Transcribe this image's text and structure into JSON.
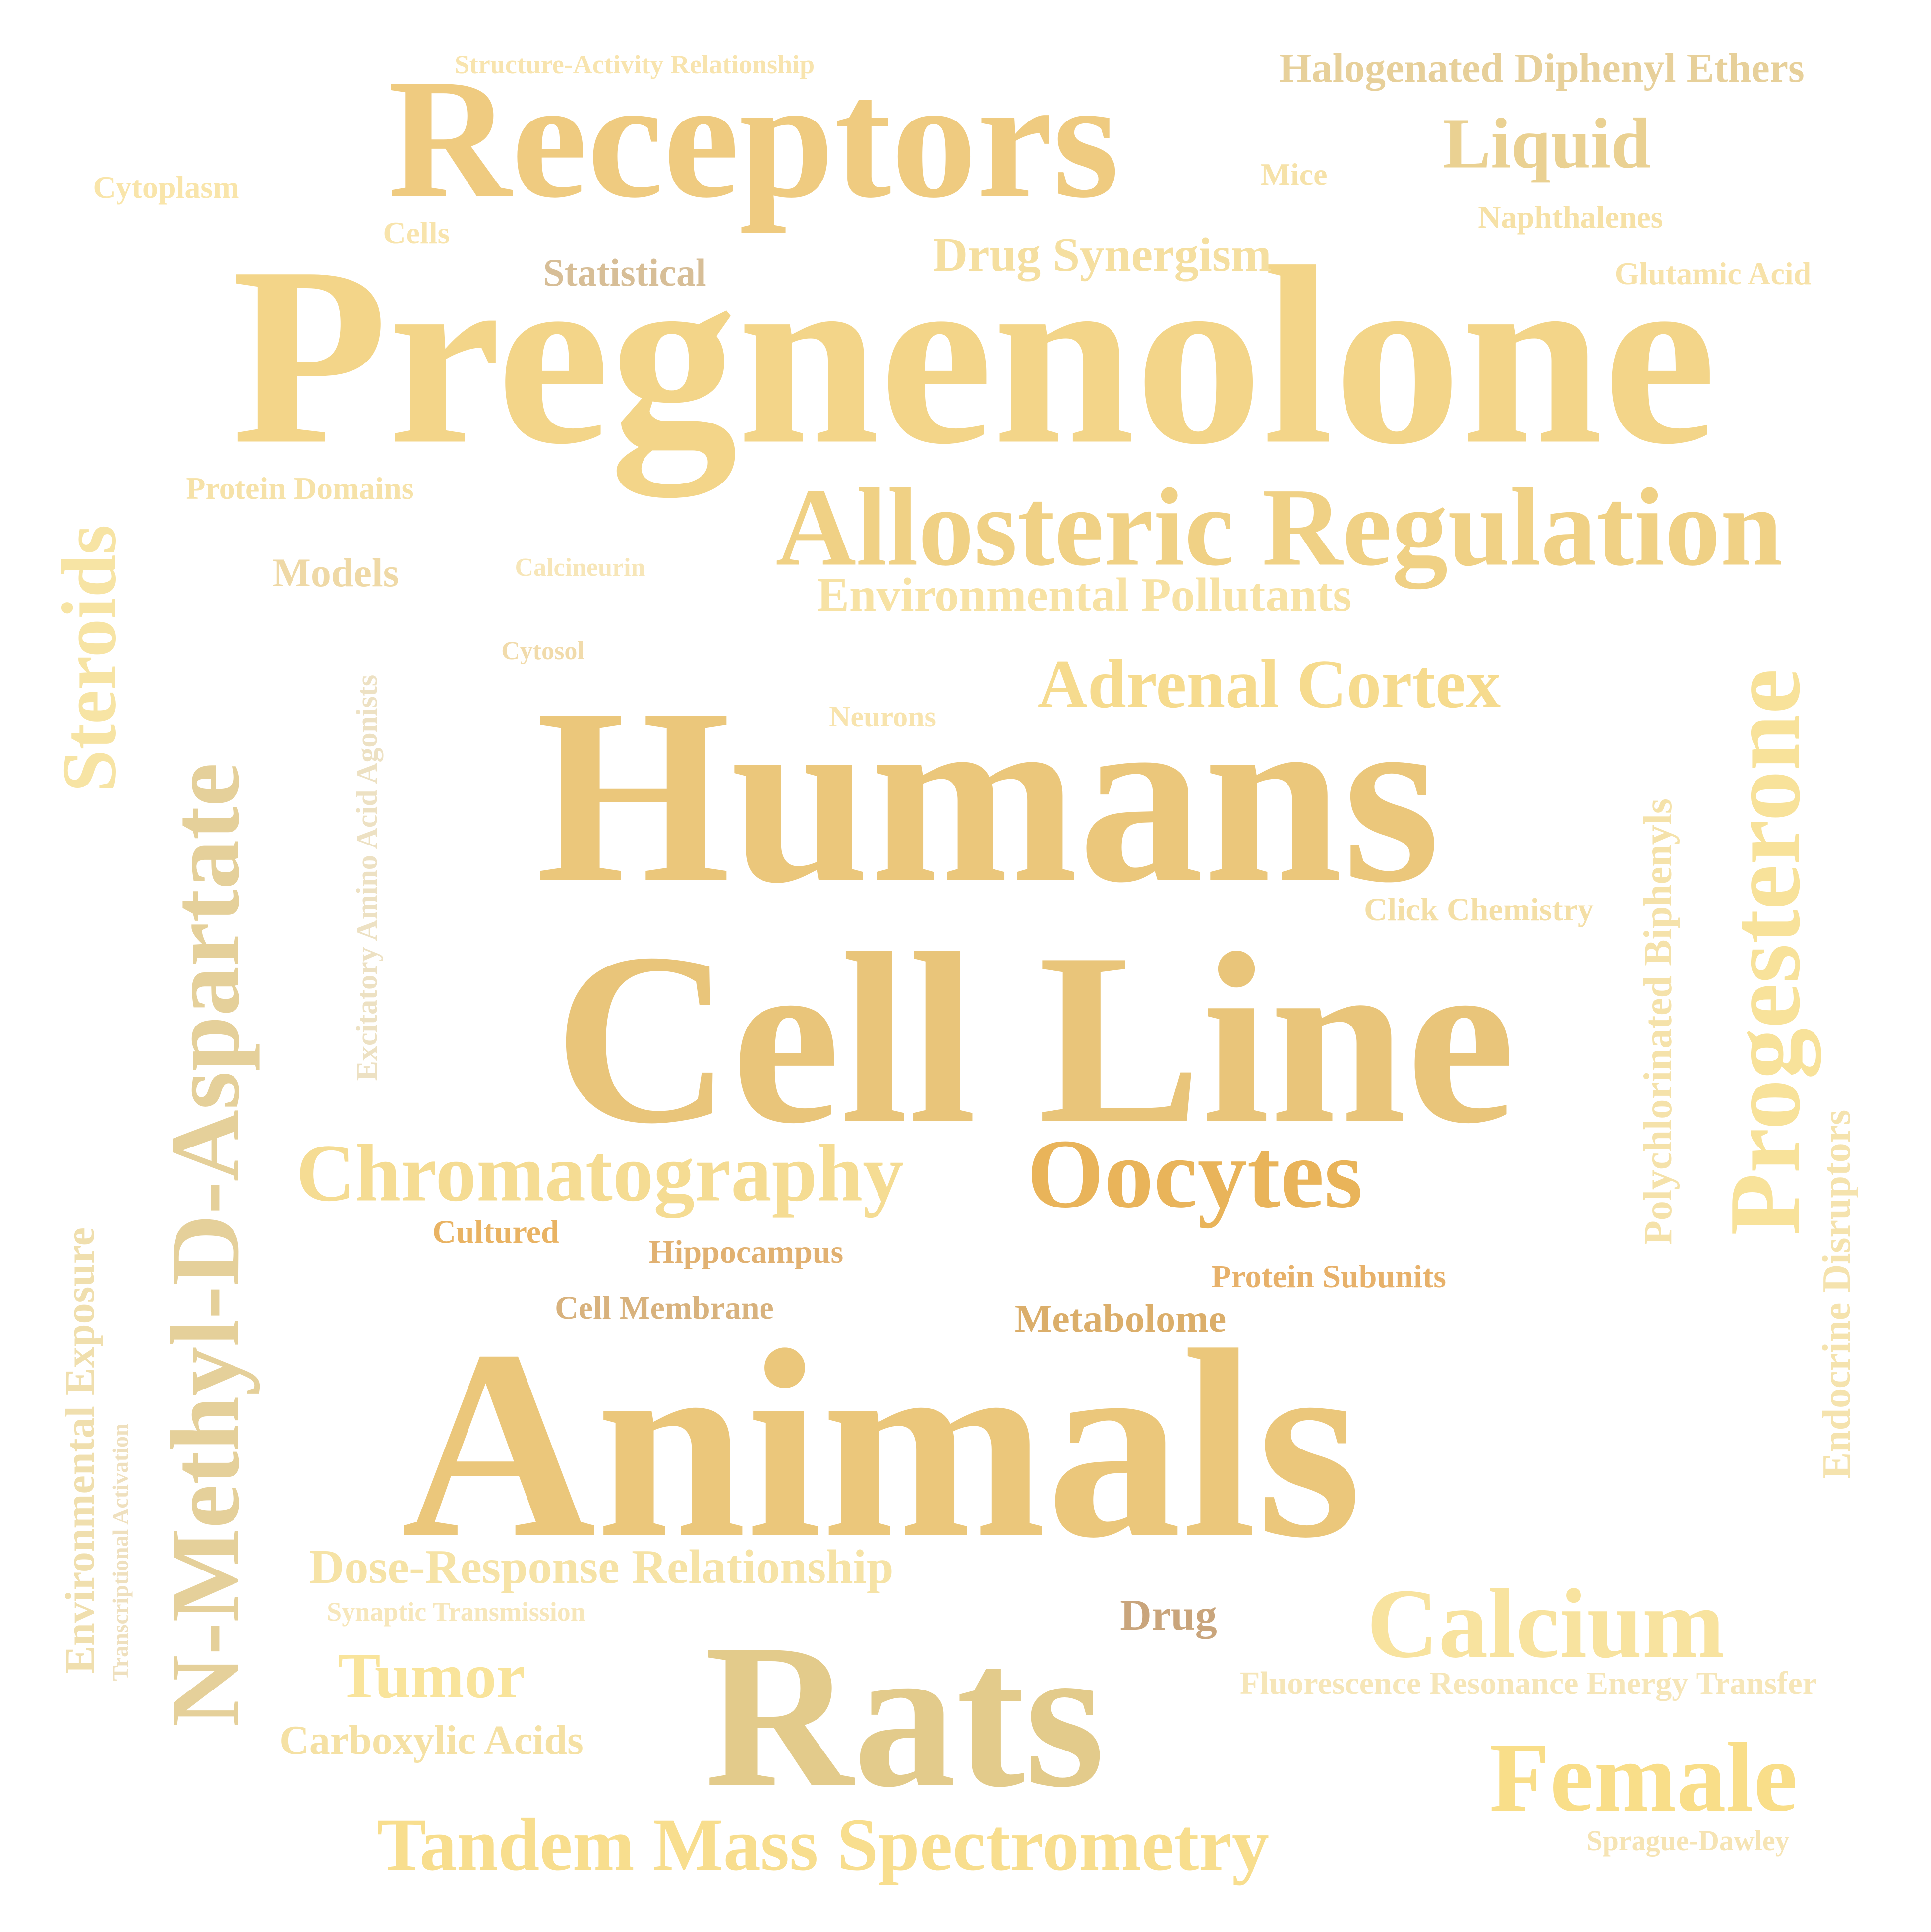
{
  "words": [
    {
      "key": "pregnenolone",
      "text": "Pregnenolone",
      "color": "#F3D589"
    },
    {
      "key": "animals",
      "text": "Animals",
      "color": "#EBC77B"
    },
    {
      "key": "humans",
      "text": "Humans",
      "color": "#EBC77B"
    },
    {
      "key": "cell-line",
      "text": "Cell Line",
      "color": "#E9C57A"
    },
    {
      "key": "receptors",
      "text": "Receptors",
      "color": "#EFCB80"
    },
    {
      "key": "rats",
      "text": "Rats",
      "color": "#E3CB8B"
    },
    {
      "key": "allosteric-regulation",
      "text": "Allosteric Regulation",
      "color": "#F0D185"
    },
    {
      "key": "n-methyl-d-aspartate",
      "text": "N-Methyl-D-Aspartate",
      "color": "#E5D09A"
    },
    {
      "key": "oocytes",
      "text": "Oocytes",
      "color": "#E9B45A"
    },
    {
      "key": "chromatography",
      "text": "Chromatography",
      "color": "#F5DC93"
    },
    {
      "key": "progesterone",
      "text": "Progesterone",
      "color": "#F8E29A"
    },
    {
      "key": "calcium",
      "text": "Calcium",
      "color": "#F8E39F"
    },
    {
      "key": "female",
      "text": "Female",
      "color": "#F9DE89"
    },
    {
      "key": "tandem-mass-spectrometry",
      "text": "Tandem Mass Spectrometry",
      "color": "#F8DE8E"
    },
    {
      "key": "adrenal-cortex",
      "text": "Adrenal Cortex",
      "color": "#F6DB8E"
    },
    {
      "key": "steroids",
      "text": "Steroids",
      "color": "#F7E4A4"
    },
    {
      "key": "liquid",
      "text": "Liquid",
      "color": "#EAD192"
    },
    {
      "key": "tumor",
      "text": "Tumor",
      "color": "#F9E49B"
    },
    {
      "key": "dose-response-relationship",
      "text": "Dose-Response Relationship",
      "color": "#F6E3A6"
    },
    {
      "key": "drug-synergism",
      "text": "Drug Synergism",
      "color": "#F5DFA0"
    },
    {
      "key": "environmental-pollutants",
      "text": "Environmental Pollutants",
      "color": "#F7E2A4"
    },
    {
      "key": "halogenated-diphenyl-ethers",
      "text": "Halogenated Diphenyl Ethers",
      "color": "#E7D09A"
    },
    {
      "key": "carboxylic-acids",
      "text": "Carboxylic Acids",
      "color": "#F5E1A4"
    },
    {
      "key": "environmental-exposure",
      "text": "Environmental Exposure",
      "color": "#F0DFAE"
    },
    {
      "key": "endocrine-disruptors",
      "text": "Endocrine Disruptors",
      "color": "#F5E3AE"
    },
    {
      "key": "polychlorinated-biphenyls",
      "text": "Polychlorinated Biphenyls",
      "color": "#F5E2AA"
    },
    {
      "key": "excitatory-amino-acid-agonists",
      "text": "Excitatory Amino Acid Agonists",
      "color": "#EDE1C3"
    },
    {
      "key": "fluorescence-resonance-energy-transfer",
      "text": "Fluorescence Resonance Energy Transfer",
      "color": "#F6E6B8"
    },
    {
      "key": "metabolome",
      "text": "Metabolome",
      "color": "#DBAE6A"
    },
    {
      "key": "drug",
      "text": "Drug",
      "color": "#C9A57C"
    },
    {
      "key": "statistical",
      "text": "Statistical",
      "color": "#D7BE97"
    },
    {
      "key": "models",
      "text": "Models",
      "color": "#EFD9A6"
    },
    {
      "key": "click-chemistry",
      "text": "Click Chemistry",
      "color": "#F4DFA6"
    },
    {
      "key": "protein-subunits",
      "text": "Protein Subunits",
      "color": "#E7B16A"
    },
    {
      "key": "hippocampus",
      "text": "Hippocampus",
      "color": "#E1B171"
    },
    {
      "key": "cell-membrane",
      "text": "Cell Membrane",
      "color": "#D8B27D"
    },
    {
      "key": "cultured",
      "text": "Cultured",
      "color": "#E9B363"
    },
    {
      "key": "protein-domains",
      "text": "Protein Domains",
      "color": "#F6E2A8"
    },
    {
      "key": "cytoplasm",
      "text": "Cytoplasm",
      "color": "#F9E5AA"
    },
    {
      "key": "cells",
      "text": "Cells",
      "color": "#F8E4AC"
    },
    {
      "key": "mice",
      "text": "Mice",
      "color": "#F6E2A9"
    },
    {
      "key": "naphthalenes",
      "text": "Naphthalenes",
      "color": "#F6E1A6"
    },
    {
      "key": "glutamic-acid",
      "text": "Glutamic Acid",
      "color": "#F7E2A9"
    },
    {
      "key": "neurons",
      "text": "Neurons",
      "color": "#F8E4AE"
    },
    {
      "key": "structure-activity-relationship",
      "text": "Structure-Activity Relationship",
      "color": "#F8E4AE"
    },
    {
      "key": "calcineurin",
      "text": "Calcineurin",
      "color": "#F7E6B8"
    },
    {
      "key": "cytosol",
      "text": "Cytosol",
      "color": "#F1DBAB"
    },
    {
      "key": "synaptic-transmission",
      "text": "Synaptic Transmission",
      "color": "#F7E7BB"
    },
    {
      "key": "sprague-dawley",
      "text": "Sprague-Dawley",
      "color": "#F6E4B4"
    },
    {
      "key": "transcriptional-activation",
      "text": "Transcriptional Activation",
      "color": "#EFE0BE"
    }
  ]
}
